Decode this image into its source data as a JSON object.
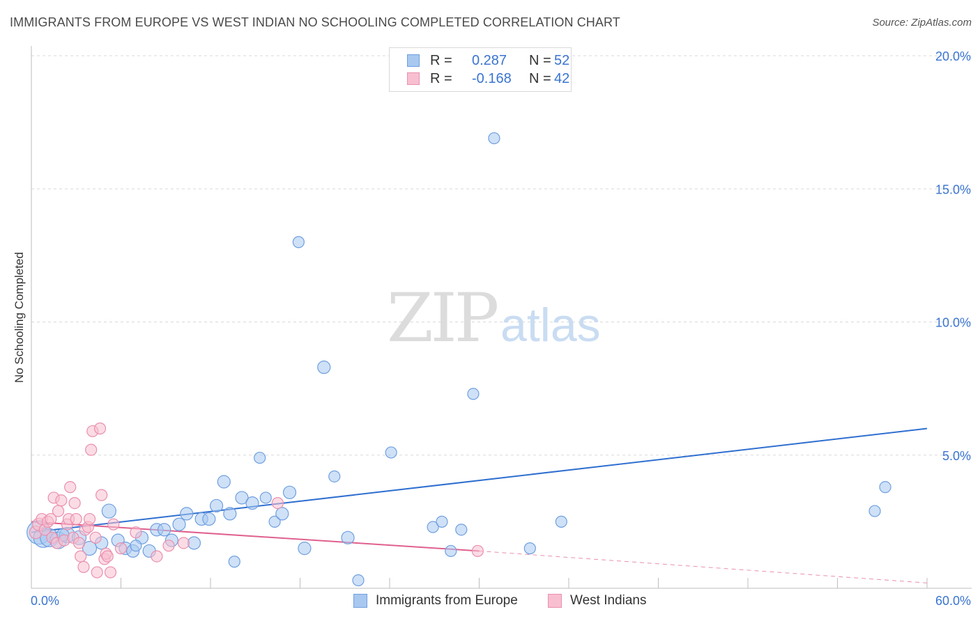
{
  "header": {
    "title": "IMMIGRANTS FROM EUROPE VS WEST INDIAN NO SCHOOLING COMPLETED CORRELATION CHART",
    "source": "Source: ZipAtlas.com"
  },
  "watermark": {
    "part1": "ZIP",
    "part2": "atlas"
  },
  "stats": [
    {
      "r_label": "R =",
      "r_value": "0.287",
      "n_label": "N =",
      "n_value": "52",
      "color": "#a8c8f0",
      "border": "#6f9fe0"
    },
    {
      "r_label": "R =",
      "r_value": "-0.168",
      "n_label": "N =",
      "n_value": "42",
      "color": "#f8bfd0",
      "border": "#ea8fae"
    }
  ],
  "legend": [
    {
      "label": "Immigrants from Europe",
      "color": "#a8c8f0",
      "border": "#6f9fe0"
    },
    {
      "label": "West Indians",
      "color": "#f8bfd0",
      "border": "#ea8fae"
    }
  ],
  "chart_data": {
    "type": "scatter",
    "title": "IMMIGRANTS FROM EUROPE VS WEST INDIAN NO SCHOOLING COMPLETED CORRELATION CHART",
    "xlabel": "",
    "ylabel": "No Schooling Completed",
    "xlim": [
      0,
      60
    ],
    "ylim": [
      0,
      20
    ],
    "x_tick_labels": [
      "0.0%",
      "60.0%"
    ],
    "y_ticks": [
      5,
      10,
      15,
      20
    ],
    "y_tick_labels": [
      "5.0%",
      "10.0%",
      "15.0%",
      "20.0%"
    ],
    "grid": true,
    "series": [
      {
        "name": "Immigrants from Europe",
        "color": "#a8c8f0",
        "stroke": "#6f9fe0",
        "line_color": "#2f6fd0",
        "trend": {
          "x": [
            0,
            60
          ],
          "y": [
            2.1,
            6.0
          ]
        },
        "points": [
          [
            0.5,
            2.1,
            17
          ],
          [
            0.8,
            1.9,
            14
          ],
          [
            1.2,
            1.9,
            13
          ],
          [
            1.8,
            1.8,
            12
          ],
          [
            2.4,
            2.0,
            11
          ],
          [
            3.2,
            1.9,
            10
          ],
          [
            3.9,
            1.5,
            10
          ],
          [
            4.7,
            1.7,
            9
          ],
          [
            5.2,
            2.9,
            10
          ],
          [
            5.8,
            1.8,
            9
          ],
          [
            6.3,
            1.5,
            9
          ],
          [
            6.8,
            1.4,
            9
          ],
          [
            7.4,
            1.9,
            9
          ],
          [
            7.9,
            1.4,
            9
          ],
          [
            8.4,
            2.2,
            9
          ],
          [
            8.9,
            2.2,
            9
          ],
          [
            9.4,
            1.8,
            9
          ],
          [
            9.9,
            2.4,
            9
          ],
          [
            10.4,
            2.8,
            9
          ],
          [
            10.9,
            1.7,
            9
          ],
          [
            11.4,
            2.6,
            9
          ],
          [
            11.9,
            2.6,
            9
          ],
          [
            12.4,
            3.1,
            9
          ],
          [
            12.9,
            4.0,
            9
          ],
          [
            13.3,
            2.8,
            9
          ],
          [
            13.6,
            1.0,
            8
          ],
          [
            14.1,
            3.4,
            9
          ],
          [
            14.8,
            3.2,
            9
          ],
          [
            15.3,
            4.9,
            8
          ],
          [
            15.7,
            3.4,
            8
          ],
          [
            16.3,
            2.5,
            8
          ],
          [
            16.8,
            2.8,
            9
          ],
          [
            17.3,
            3.6,
            9
          ],
          [
            17.9,
            13.0,
            8
          ],
          [
            18.3,
            1.5,
            9
          ],
          [
            19.6,
            8.3,
            9
          ],
          [
            20.3,
            4.2,
            8
          ],
          [
            21.2,
            1.9,
            9
          ],
          [
            21.9,
            0.3,
            8
          ],
          [
            24.1,
            5.1,
            8
          ],
          [
            26.9,
            2.3,
            8
          ],
          [
            27.5,
            2.5,
            8
          ],
          [
            28.1,
            1.4,
            8
          ],
          [
            28.8,
            2.2,
            8
          ],
          [
            29.6,
            7.3,
            8
          ],
          [
            31.0,
            16.9,
            8
          ],
          [
            33.4,
            1.5,
            8
          ],
          [
            35.5,
            2.5,
            8
          ],
          [
            56.5,
            2.9,
            8
          ],
          [
            57.2,
            3.8,
            8
          ],
          [
            2.1,
            2.0,
            9
          ],
          [
            7.0,
            1.6,
            8
          ]
        ]
      },
      {
        "name": "West Indians",
        "color": "#f8bfd0",
        "stroke": "#ea8fae",
        "line_color": "#e0608e",
        "trend": {
          "x": [
            0,
            30
          ],
          "y": [
            2.5,
            1.4
          ]
        },
        "trend_extension": {
          "x": [
            30,
            60
          ],
          "y": [
            1.4,
            0.2
          ]
        },
        "points": [
          [
            0.3,
            2.1,
            9
          ],
          [
            0.5,
            2.4,
            9
          ],
          [
            0.7,
            2.6,
            8
          ],
          [
            0.9,
            2.2,
            8
          ],
          [
            1.1,
            2.5,
            8
          ],
          [
            1.3,
            2.6,
            8
          ],
          [
            1.4,
            1.9,
            8
          ],
          [
            1.5,
            3.4,
            8
          ],
          [
            1.7,
            1.7,
            8
          ],
          [
            1.8,
            2.9,
            8
          ],
          [
            2.0,
            3.3,
            8
          ],
          [
            2.2,
            1.8,
            8
          ],
          [
            2.4,
            2.4,
            8
          ],
          [
            2.5,
            2.6,
            8
          ],
          [
            2.6,
            3.8,
            8
          ],
          [
            2.8,
            1.9,
            8
          ],
          [
            2.9,
            3.2,
            8
          ],
          [
            3.0,
            2.6,
            8
          ],
          [
            3.2,
            1.7,
            8
          ],
          [
            3.3,
            1.2,
            8
          ],
          [
            3.5,
            0.8,
            8
          ],
          [
            3.6,
            2.2,
            8
          ],
          [
            3.8,
            2.3,
            8
          ],
          [
            3.9,
            2.6,
            8
          ],
          [
            4.0,
            5.2,
            8
          ],
          [
            4.1,
            5.9,
            8
          ],
          [
            4.3,
            1.9,
            8
          ],
          [
            4.4,
            0.6,
            8
          ],
          [
            4.6,
            6.0,
            8
          ],
          [
            4.7,
            3.5,
            8
          ],
          [
            4.9,
            1.1,
            8
          ],
          [
            5.0,
            1.3,
            8
          ],
          [
            5.1,
            1.2,
            8
          ],
          [
            5.3,
            0.6,
            8
          ],
          [
            5.5,
            2.4,
            8
          ],
          [
            6.0,
            1.5,
            8
          ],
          [
            7.0,
            2.1,
            8
          ],
          [
            8.4,
            1.2,
            8
          ],
          [
            9.2,
            1.6,
            8
          ],
          [
            10.2,
            1.7,
            8
          ],
          [
            16.5,
            3.2,
            8
          ],
          [
            29.9,
            1.4,
            8
          ]
        ]
      }
    ]
  }
}
